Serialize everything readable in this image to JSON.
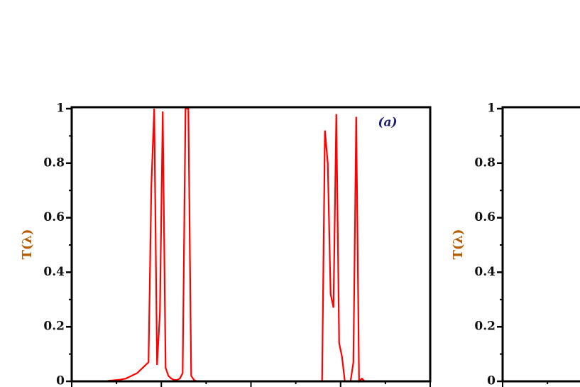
{
  "chart_data": [
    {
      "type": "line",
      "title": "(a)",
      "y_label": "T(λ)",
      "series": [
        {
          "color": "#ff0000",
          "values": [
            0,
            0,
            0,
            0,
            0,
            0,
            0,
            0,
            0,
            0,
            0,
            0,
            0,
            0.002,
            0.003,
            0.004,
            0.005,
            0.006,
            0.008,
            0.01,
            0.015,
            0.02,
            0.025,
            0.03,
            0.04,
            0.05,
            0.06,
            0.07,
            0.72,
            1,
            0.06,
            0.25,
            0.99,
            0.05,
            0.02,
            0.01,
            0.005,
            0.005,
            0.01,
            0.03,
            1,
            1,
            0.02,
            0.005,
            0,
            0,
            0,
            0,
            0,
            0,
            0,
            0,
            0,
            0,
            0,
            0,
            0,
            0,
            0,
            0,
            0,
            0,
            0,
            0,
            0,
            0,
            0,
            0,
            0,
            0,
            0,
            0,
            0,
            0,
            0,
            0,
            0,
            0,
            0,
            0,
            0,
            0,
            0,
            0,
            0,
            0,
            0,
            0,
            0,
            0.92,
            0.8,
            0.32,
            0.27,
            0.98,
            0.14,
            0.09,
            0,
            0,
            0,
            0.07,
            0.97,
            0,
            0.01,
            0,
            0,
            0,
            0,
            0,
            0,
            0,
            0,
            0,
            0,
            0,
            0,
            0,
            0,
            0,
            0,
            0,
            0,
            0,
            0,
            0,
            0,
            0,
            0
          ]
        }
      ],
      "ylim": [
        0,
        1
      ],
      "yticks": [
        0,
        0.2,
        0.4,
        0.6,
        0.8,
        1
      ]
    },
    {
      "type": "line",
      "y_label": "T(λ)",
      "series": [
        {
          "color": "#ff0000",
          "values": [
            0,
            0,
            0,
            0,
            0,
            0
          ]
        }
      ],
      "ylim": [
        0,
        1
      ],
      "yticks": [
        0,
        0.2,
        0.4,
        0.6,
        0.8,
        1
      ]
    }
  ]
}
